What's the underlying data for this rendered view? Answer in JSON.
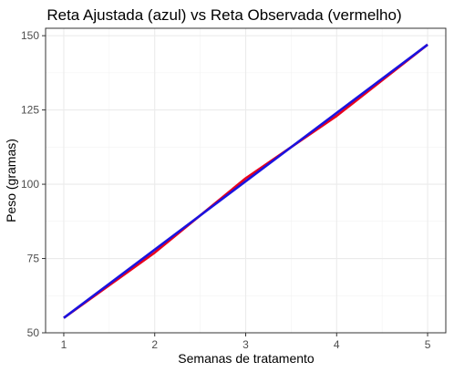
{
  "chart_data": {
    "type": "line",
    "title": "Reta Ajustada (azul) vs Reta Observada (vermelho)",
    "xlabel": "Semanas de tratamento",
    "ylabel": "Peso (gramas)",
    "xlim": [
      0.8,
      5.2
    ],
    "ylim": [
      50,
      152.5
    ],
    "x_ticks": [
      1,
      2,
      3,
      4,
      5
    ],
    "y_ticks": [
      50,
      75,
      100,
      125,
      150
    ],
    "grid": true,
    "series": [
      {
        "color": "#e8001c",
        "x": [
          1,
          2,
          3,
          4,
          5
        ],
        "values": [
          55,
          77,
          102,
          123,
          147
        ]
      },
      {
        "color": "#1a12e0",
        "x": [
          1,
          5
        ],
        "values": [
          55,
          147
        ]
      }
    ]
  }
}
